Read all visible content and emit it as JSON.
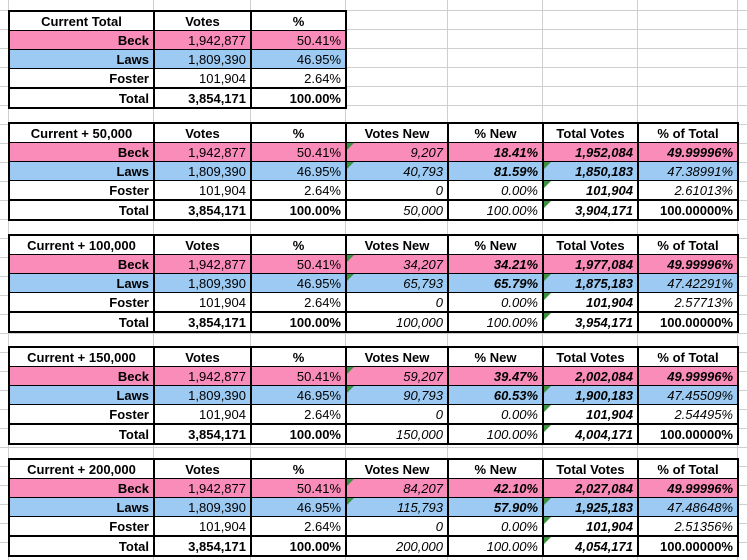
{
  "colors": {
    "row_colors": {
      "Beck": "#F98CB8",
      "Laws": "#9CCAF2",
      "Foster": "#FFFFFF",
      "Total": "#FFFFFF"
    },
    "grid_line": "#CFCFCF",
    "table_border": "#000000",
    "indicator_green": "#3F9142",
    "text": "#000000"
  },
  "tables": [
    {
      "title": "Current Total",
      "columns": [
        "Votes",
        "%"
      ],
      "rows": [
        {
          "label": "Beck",
          "values": [
            "1,942,877",
            "50.41%"
          ]
        },
        {
          "label": "Laws",
          "values": [
            "1,809,390",
            "46.95%"
          ]
        },
        {
          "label": "Foster",
          "values": [
            "101,904",
            "2.64%"
          ]
        },
        {
          "label": "Total",
          "values": [
            "3,854,171",
            "100.00%"
          ]
        }
      ],
      "indicators": []
    },
    {
      "title": "Current + 50,000",
      "columns": [
        "Votes",
        "%",
        "Votes New",
        "% New",
        "Total Votes",
        "% of Total"
      ],
      "rows": [
        {
          "label": "Beck",
          "values": [
            "1,942,877",
            "50.41%",
            "9,207",
            "18.41%",
            "1,952,084",
            "49.99996%"
          ]
        },
        {
          "label": "Laws",
          "values": [
            "1,809,390",
            "46.95%",
            "40,793",
            "81.59%",
            "1,850,183",
            "47.38991%"
          ]
        },
        {
          "label": "Foster",
          "values": [
            "101,904",
            "2.64%",
            "0",
            "0.00%",
            "101,904",
            "2.61013%"
          ]
        },
        {
          "label": "Total",
          "values": [
            "3,854,171",
            "100.00%",
            "50,000",
            "100.00%",
            "3,904,171",
            "100.00000%"
          ]
        }
      ],
      "indicators": [
        {
          "column": "Votes New",
          "rows": [
            "Beck",
            "Laws"
          ]
        },
        {
          "column": "Total Votes",
          "rows": [
            "Laws",
            "Foster",
            "Total"
          ]
        }
      ]
    },
    {
      "title": "Current + 100,000",
      "columns": [
        "Votes",
        "%",
        "Votes New",
        "% New",
        "Total Votes",
        "% of Total"
      ],
      "rows": [
        {
          "label": "Beck",
          "values": [
            "1,942,877",
            "50.41%",
            "34,207",
            "34.21%",
            "1,977,084",
            "49.99996%"
          ]
        },
        {
          "label": "Laws",
          "values": [
            "1,809,390",
            "46.95%",
            "65,793",
            "65.79%",
            "1,875,183",
            "47.42291%"
          ]
        },
        {
          "label": "Foster",
          "values": [
            "101,904",
            "2.64%",
            "0",
            "0.00%",
            "101,904",
            "2.57713%"
          ]
        },
        {
          "label": "Total",
          "values": [
            "3,854,171",
            "100.00%",
            "100,000",
            "100.00%",
            "3,954,171",
            "100.00000%"
          ]
        }
      ],
      "indicators": [
        {
          "column": "Votes New",
          "rows": [
            "Beck",
            "Laws"
          ]
        },
        {
          "column": "Total Votes",
          "rows": [
            "Laws",
            "Foster",
            "Total"
          ]
        }
      ]
    },
    {
      "title": "Current + 150,000",
      "columns": [
        "Votes",
        "%",
        "Votes New",
        "% New",
        "Total Votes",
        "% of Total"
      ],
      "rows": [
        {
          "label": "Beck",
          "values": [
            "1,942,877",
            "50.41%",
            "59,207",
            "39.47%",
            "2,002,084",
            "49.99996%"
          ]
        },
        {
          "label": "Laws",
          "values": [
            "1,809,390",
            "46.95%",
            "90,793",
            "60.53%",
            "1,900,183",
            "47.45509%"
          ]
        },
        {
          "label": "Foster",
          "values": [
            "101,904",
            "2.64%",
            "0",
            "0.00%",
            "101,904",
            "2.54495%"
          ]
        },
        {
          "label": "Total",
          "values": [
            "3,854,171",
            "100.00%",
            "150,000",
            "100.00%",
            "4,004,171",
            "100.00000%"
          ]
        }
      ],
      "indicators": [
        {
          "column": "Votes New",
          "rows": [
            "Beck",
            "Laws"
          ]
        },
        {
          "column": "Total Votes",
          "rows": [
            "Laws",
            "Foster",
            "Total"
          ]
        }
      ]
    },
    {
      "title": "Current + 200,000",
      "columns": [
        "Votes",
        "%",
        "Votes New",
        "% New",
        "Total Votes",
        "% of Total"
      ],
      "rows": [
        {
          "label": "Beck",
          "values": [
            "1,942,877",
            "50.41%",
            "84,207",
            "42.10%",
            "2,027,084",
            "49.99996%"
          ]
        },
        {
          "label": "Laws",
          "values": [
            "1,809,390",
            "46.95%",
            "115,793",
            "57.90%",
            "1,925,183",
            "47.48648%"
          ]
        },
        {
          "label": "Foster",
          "values": [
            "101,904",
            "2.64%",
            "0",
            "0.00%",
            "101,904",
            "2.51356%"
          ]
        },
        {
          "label": "Total",
          "values": [
            "3,854,171",
            "100.00%",
            "200,000",
            "100.00%",
            "4,054,171",
            "100.00000%"
          ]
        }
      ],
      "indicators": [
        {
          "column": "Votes New",
          "rows": [
            "Beck",
            "Laws"
          ]
        },
        {
          "column": "Total Votes",
          "rows": [
            "Laws",
            "Foster",
            "Total"
          ]
        }
      ]
    }
  ]
}
